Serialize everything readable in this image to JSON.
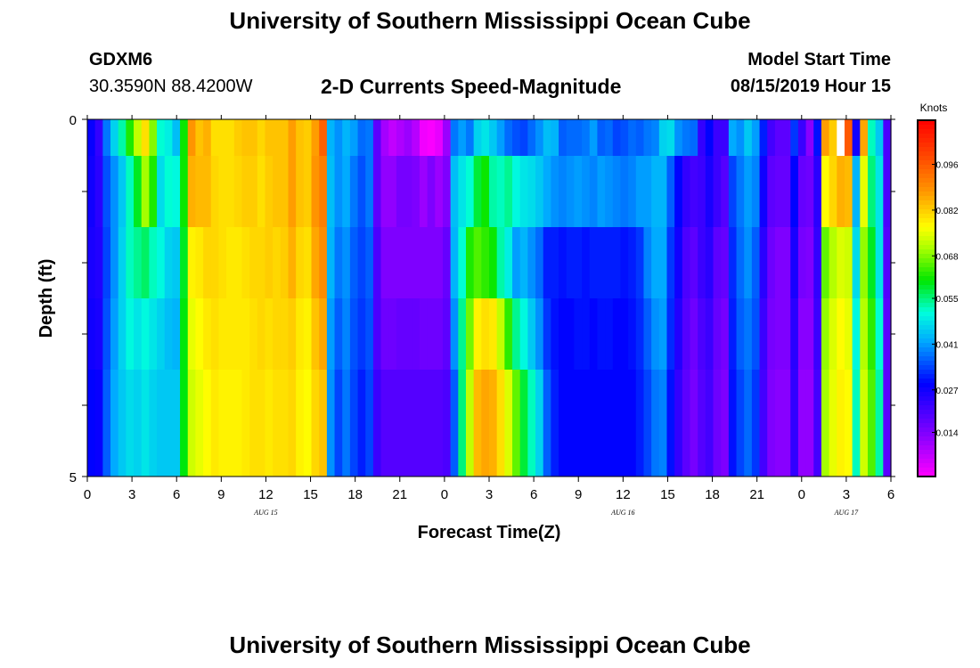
{
  "header": {
    "title": "University of Southern Mississippi Ocean Cube",
    "station_id": "GDXM6",
    "coords": "30.3590N 88.4200W",
    "model_start_label": "Model Start Time",
    "model_start_value": "08/15/2019 Hour 15"
  },
  "footer": {
    "title": "University of Southern Mississippi Ocean Cube"
  },
  "chart_data": {
    "type": "heatmap",
    "title": "2-D Currents Speed-Magnitude",
    "xlabel": "Forecast Time(Z)",
    "ylabel": "Depth (ft)",
    "x_tick_labels": [
      "0",
      "3",
      "6",
      "9",
      "12",
      "15",
      "18",
      "21",
      "0",
      "3",
      "6",
      "9",
      "12",
      "15",
      "18",
      "21",
      "0",
      "3",
      "6"
    ],
    "date_labels": [
      {
        "text": "AUG 15",
        "at_hour": 12
      },
      {
        "text": "AUG 16",
        "at_hour": 36
      },
      {
        "text": "AUG 17",
        "at_hour": 51
      }
    ],
    "y_tick_labels": [
      "0",
      "5"
    ],
    "ylim": [
      0,
      5
    ],
    "xlim": [
      0,
      54
    ],
    "colorbar": {
      "label": "Knots",
      "ticks": [
        "0.096",
        "0.082",
        "0.068",
        "0.055",
        "0.041",
        "0.027",
        "0.014"
      ],
      "vmin": 0.0005,
      "vmax": 0.1095
    },
    "depth_levels": 5,
    "rows": [
      [
        0.028,
        0.023,
        0.038,
        0.046,
        0.053,
        0.062,
        0.072,
        0.08,
        0.068,
        0.051,
        0.049,
        0.044,
        0.061,
        0.088,
        0.083,
        0.085,
        0.08,
        0.08,
        0.08,
        0.082,
        0.083,
        0.083,
        0.081,
        0.083,
        0.083,
        0.083,
        0.087,
        0.083,
        0.082,
        0.087,
        0.095,
        0.043,
        0.04,
        0.043,
        0.041,
        0.037,
        0.038,
        0.018,
        0.01,
        0.007,
        0.009,
        0.011,
        0.008,
        0.002,
        0.001,
        0.003,
        0.011,
        0.038,
        0.041,
        0.038,
        0.046,
        0.048,
        0.045,
        0.041,
        0.037,
        0.035,
        0.034,
        0.037,
        0.04,
        0.044,
        0.043,
        0.036,
        0.037,
        0.037,
        0.038,
        0.041,
        0.036,
        0.037,
        0.034,
        0.035,
        0.037,
        0.036,
        0.038,
        0.039,
        0.046,
        0.047,
        0.04,
        0.038,
        0.037,
        0.023,
        0.029,
        0.022,
        0.022,
        0.042,
        0.04,
        0.045,
        0.041,
        0.031,
        0.021,
        0.018,
        0.018,
        0.033,
        0.022,
        0.013,
        0.03,
        0.087,
        0.082,
        null,
        0.096,
        0.027,
        0.086,
        0.052,
        0.045,
        0.02
      ],
      [
        0.027,
        0.024,
        0.035,
        0.04,
        0.045,
        0.052,
        0.059,
        0.07,
        0.062,
        0.047,
        0.051,
        0.05,
        0.061,
        0.085,
        0.084,
        0.084,
        0.081,
        0.08,
        0.08,
        0.081,
        0.082,
        0.082,
        0.08,
        0.082,
        0.083,
        0.083,
        0.087,
        0.083,
        0.082,
        0.088,
        0.091,
        0.044,
        0.04,
        0.042,
        0.038,
        0.035,
        0.038,
        0.018,
        0.012,
        0.012,
        0.015,
        0.015,
        0.014,
        0.011,
        0.014,
        0.011,
        0.014,
        0.044,
        0.048,
        0.051,
        0.058,
        0.061,
        0.053,
        0.052,
        0.054,
        0.05,
        0.048,
        0.047,
        0.045,
        0.042,
        0.04,
        0.039,
        0.04,
        0.041,
        0.04,
        0.039,
        0.041,
        0.04,
        0.039,
        0.038,
        0.039,
        0.041,
        0.041,
        0.043,
        0.043,
        0.036,
        0.029,
        0.023,
        0.021,
        0.022,
        0.026,
        0.022,
        0.019,
        0.034,
        0.038,
        0.041,
        0.039,
        0.027,
        0.018,
        0.017,
        0.017,
        0.029,
        0.017,
        0.016,
        0.024,
        0.077,
        0.081,
        0.085,
        0.084,
        0.043,
        0.075,
        0.055,
        0.048,
        0.02
      ],
      [
        0.026,
        0.025,
        0.034,
        0.04,
        0.046,
        0.052,
        0.054,
        0.056,
        0.052,
        0.05,
        0.046,
        0.045,
        0.059,
        0.078,
        0.079,
        0.081,
        0.081,
        0.08,
        0.079,
        0.079,
        0.08,
        0.081,
        0.081,
        0.082,
        0.081,
        0.082,
        0.085,
        0.081,
        0.08,
        0.086,
        0.089,
        0.043,
        0.038,
        0.04,
        0.036,
        0.034,
        0.036,
        0.02,
        0.014,
        0.014,
        0.014,
        0.014,
        0.014,
        0.014,
        0.014,
        0.014,
        0.017,
        0.043,
        0.051,
        0.062,
        0.065,
        0.063,
        0.061,
        0.053,
        0.049,
        0.041,
        0.043,
        0.04,
        0.037,
        0.031,
        0.031,
        0.03,
        0.031,
        0.031,
        0.03,
        0.031,
        0.031,
        0.031,
        0.031,
        0.03,
        0.031,
        0.033,
        0.039,
        0.042,
        0.042,
        0.033,
        0.027,
        0.02,
        0.018,
        0.022,
        0.024,
        0.018,
        0.017,
        0.032,
        0.037,
        0.04,
        0.036,
        0.024,
        0.016,
        0.014,
        0.014,
        0.026,
        0.015,
        0.014,
        0.023,
        0.066,
        0.071,
        0.074,
        0.073,
        0.047,
        0.069,
        0.059,
        0.048,
        0.019
      ],
      [
        0.027,
        0.026,
        0.035,
        0.041,
        0.046,
        0.05,
        0.048,
        0.05,
        0.048,
        0.046,
        0.044,
        0.043,
        0.06,
        0.075,
        0.077,
        0.079,
        0.08,
        0.079,
        0.079,
        0.079,
        0.079,
        0.08,
        0.081,
        0.08,
        0.081,
        0.081,
        0.082,
        0.079,
        0.078,
        0.083,
        0.086,
        0.041,
        0.036,
        0.039,
        0.035,
        0.033,
        0.035,
        0.02,
        0.016,
        0.016,
        0.017,
        0.017,
        0.017,
        0.016,
        0.016,
        0.016,
        0.018,
        0.04,
        0.054,
        0.067,
        0.078,
        0.08,
        0.079,
        0.072,
        0.063,
        0.054,
        0.05,
        0.045,
        0.04,
        0.033,
        0.03,
        0.029,
        0.029,
        0.03,
        0.03,
        0.029,
        0.03,
        0.03,
        0.029,
        0.029,
        0.03,
        0.032,
        0.036,
        0.04,
        0.041,
        0.032,
        0.025,
        0.019,
        0.016,
        0.02,
        0.022,
        0.017,
        0.015,
        0.031,
        0.036,
        0.038,
        0.035,
        0.022,
        0.015,
        0.014,
        0.014,
        0.024,
        0.013,
        0.013,
        0.022,
        0.069,
        0.074,
        0.077,
        0.075,
        0.05,
        0.071,
        0.063,
        0.051,
        0.018
      ],
      [
        0.029,
        0.028,
        0.036,
        0.042,
        0.045,
        0.047,
        0.046,
        0.048,
        0.046,
        0.045,
        0.045,
        0.045,
        0.06,
        0.073,
        0.075,
        0.077,
        0.079,
        0.078,
        0.078,
        0.078,
        0.079,
        0.08,
        0.08,
        0.079,
        0.08,
        0.08,
        0.081,
        0.078,
        0.077,
        0.081,
        0.083,
        0.04,
        0.034,
        0.038,
        0.034,
        0.031,
        0.034,
        0.022,
        0.019,
        0.019,
        0.019,
        0.019,
        0.019,
        0.019,
        0.019,
        0.019,
        0.02,
        0.036,
        0.055,
        0.072,
        0.084,
        0.086,
        0.085,
        0.08,
        0.074,
        0.066,
        0.058,
        0.052,
        0.046,
        0.036,
        0.031,
        0.029,
        0.029,
        0.029,
        0.029,
        0.029,
        0.029,
        0.029,
        0.029,
        0.029,
        0.029,
        0.031,
        0.034,
        0.038,
        0.039,
        0.03,
        0.023,
        0.018,
        0.015,
        0.019,
        0.021,
        0.016,
        0.014,
        0.03,
        0.034,
        0.037,
        0.033,
        0.021,
        0.014,
        0.013,
        0.013,
        0.023,
        0.012,
        0.012,
        0.021,
        0.07,
        0.075,
        0.078,
        0.077,
        0.052,
        0.073,
        0.065,
        0.053,
        0.018
      ]
    ]
  }
}
